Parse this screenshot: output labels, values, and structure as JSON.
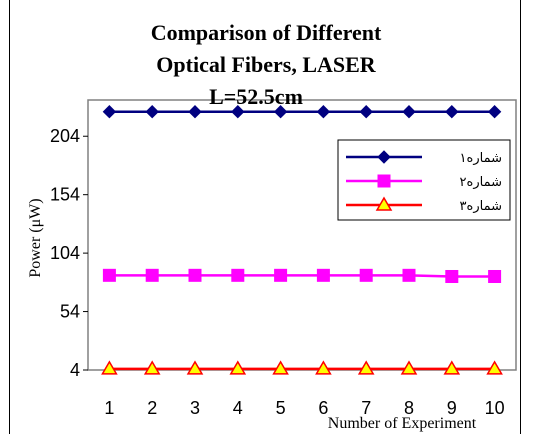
{
  "chart_data": {
    "type": "line",
    "title_lines": [
      "Comparison of Different",
      "Optical Fibers, LASER",
      "L=52.5cm"
    ],
    "xlabel": "Number of Experiment",
    "ylabel": "Power (μW)",
    "x": [
      1,
      2,
      3,
      4,
      5,
      6,
      7,
      8,
      9,
      10
    ],
    "xlim": [
      0.5,
      10.5
    ],
    "ylim": [
      4,
      235
    ],
    "yticks": [
      4,
      54,
      104,
      154,
      204
    ],
    "grid": false,
    "legend_position": "top-right",
    "series": [
      {
        "name": "شماره۱",
        "values": [
          225,
          225,
          225,
          225,
          225,
          225,
          225,
          225,
          225,
          225
        ],
        "color": "#000080",
        "marker": "diamond"
      },
      {
        "name": "شماره۲",
        "values": [
          85,
          85,
          85,
          85,
          85,
          85,
          85,
          85,
          84,
          84
        ],
        "color": "#FF00FF",
        "marker": "square"
      },
      {
        "name": "شماره۳",
        "values": [
          5,
          5,
          5,
          5,
          5,
          5,
          5,
          5,
          5,
          5
        ],
        "color": "#FF0000",
        "marker": "triangle",
        "marker_fill": "#FFFF00"
      }
    ]
  }
}
